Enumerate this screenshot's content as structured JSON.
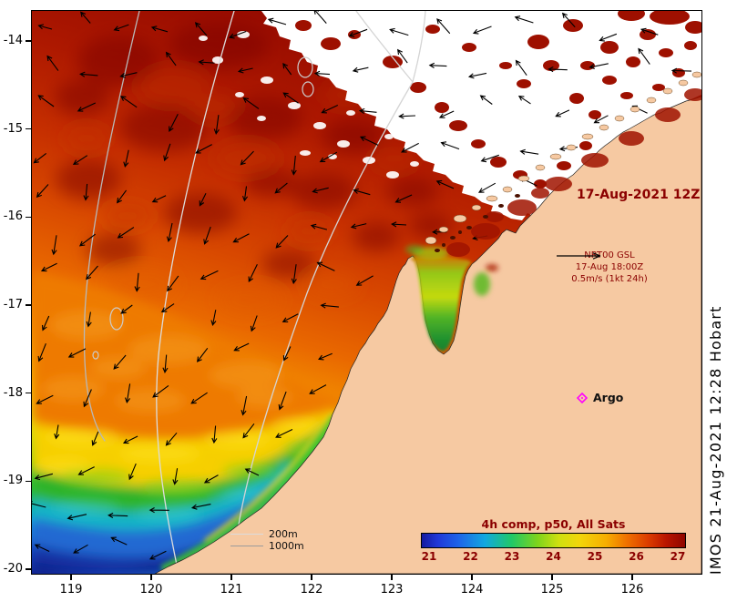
{
  "map": {
    "date_label": "17-Aug-2021 12Z",
    "nrt": {
      "line1": "NRT00 GSL",
      "line2": "17-Aug 18:00Z",
      "line3": "0.5m/s (1kt 24h)"
    },
    "argo_label": "Argo",
    "contour_legend": {
      "depth200": "200m",
      "depth1000": "1000m"
    },
    "side_text": "IMOS 21-Aug-2021 12:28 Hobart"
  },
  "colorbar": {
    "title": "4h comp, p50, All Sats",
    "tick_labels": [
      "21",
      "22",
      "23",
      "24",
      "25",
      "26",
      "27"
    ]
  },
  "axes": {
    "x_tick_labels": [
      "119",
      "120",
      "121",
      "122",
      "123",
      "124",
      "125",
      "126"
    ],
    "y_tick_labels": [
      "-14",
      "-15",
      "-16",
      "-17",
      "-18",
      "-19",
      "-20"
    ]
  },
  "colors": {
    "land": "#f6c9a2",
    "annotation_red": "#8b0000",
    "argo_marker": "#ff00ff",
    "sst_warm": "#8c0500",
    "sst_cold": "#0a2390",
    "contour_line": "#cccccc",
    "arrow": "#000000"
  },
  "icons": {
    "argo_marker": "diamond-marker-icon",
    "velocity_scale": "right-arrow-icon"
  }
}
